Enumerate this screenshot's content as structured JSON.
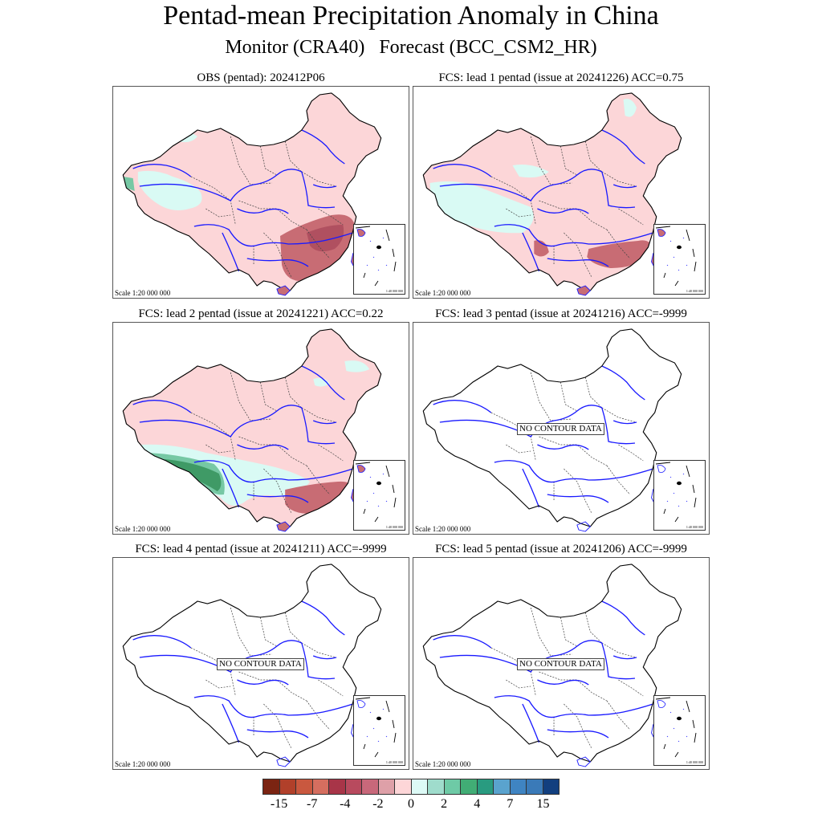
{
  "header": {
    "title": "Pentad-mean Precipitation Anomaly in China",
    "subtitle": "Monitor (CRA40)   Forecast (BCC_CSM2_HR)"
  },
  "panels": [
    {
      "title": "OBS (pentad): 202412P06",
      "scale": "Scale 1:20 000 000",
      "inset_scale": "1:40 000 000",
      "no_data_label": "",
      "fill": "obs"
    },
    {
      "title": "FCS: lead 1 pentad (issue at 20241226) ACC=0.75",
      "scale": "Scale 1:20 000 000",
      "inset_scale": "1:40 000 000",
      "no_data_label": "",
      "fill": "lead1"
    },
    {
      "title": "FCS: lead 2 pentad (issue at 20241221) ACC=0.22",
      "scale": "Scale 1:20 000 000",
      "inset_scale": "1:40 000 000",
      "no_data_label": "",
      "fill": "lead2"
    },
    {
      "title": "FCS: lead 3 pentad (issue at 20241216) ACC=-9999",
      "scale": "Scale 1:20 000 000",
      "inset_scale": "1:40 000 000",
      "no_data_label": "NO CONTOUR DATA",
      "fill": "none"
    },
    {
      "title": "FCS: lead 4 pentad (issue at 20241211) ACC=-9999",
      "scale": "Scale 1:20 000 000",
      "inset_scale": "1:40 000 000",
      "no_data_label": "NO CONTOUR DATA",
      "fill": "none"
    },
    {
      "title": "FCS: lead 5 pentad (issue at 20241206) ACC=-9999",
      "scale": "Scale 1:20 000 000",
      "inset_scale": "1:40 000 000",
      "no_data_label": "NO CONTOUR DATA",
      "fill": "none"
    }
  ],
  "legend": {
    "colors": [
      "#7b2412",
      "#b1402a",
      "#c9583f",
      "#d56e5f",
      "#a83548",
      "#b84a5e",
      "#c8687a",
      "#dea0a8",
      "#fdd6d8",
      "#ddfaf6",
      "#9fdccc",
      "#6ecaa6",
      "#41ad75",
      "#299b80",
      "#5aa3ce",
      "#3f84c2",
      "#3a7ab8",
      "#123f7f"
    ],
    "tick_labels": [
      "-15",
      "-7",
      "-4",
      "-2",
      "0",
      "2",
      "4",
      "7",
      "15"
    ]
  },
  "colors": {
    "dry_light": "#fcd6d8",
    "dry_mid": "#c86c74",
    "dry_dark": "#b05060",
    "wet_light": "#d9faf4",
    "wet_mid": "#76c8a4",
    "wet_dark": "#3f9a66",
    "river": "#1a1aff",
    "border": "#000000"
  }
}
